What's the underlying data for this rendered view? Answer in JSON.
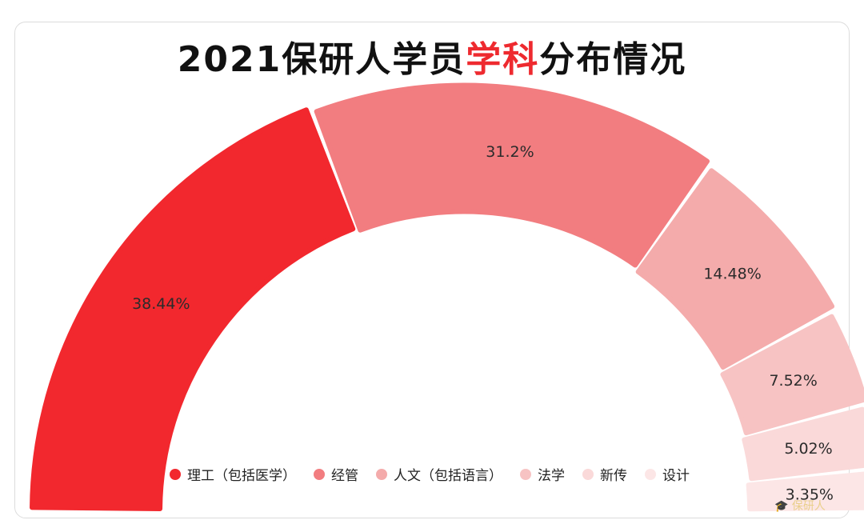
{
  "title": {
    "before": "2021保研人学员",
    "highlight": "学科",
    "after": "分布情况"
  },
  "colors": {
    "title_highlight": "#ee2a2f",
    "series": [
      "#f2282e",
      "#f27d80",
      "#f4abab",
      "#f7c3c3",
      "#fad9d9",
      "#fce6e6"
    ]
  },
  "watermark": "保研人",
  "chart_data": {
    "type": "pie",
    "subtype": "half-donut",
    "title": "2021保研人学员学科分布情况",
    "categories": [
      "理工（包括医学）",
      "经管",
      "人文（包括语言）",
      "法学",
      "新传",
      "设计"
    ],
    "values": [
      38.44,
      31.2,
      14.48,
      7.52,
      5.02,
      3.35
    ],
    "data_labels": [
      "38.44%",
      "31.2%",
      "14.48%",
      "7.52%",
      "5.02%",
      "3.35%"
    ],
    "legend_position": "bottom"
  }
}
